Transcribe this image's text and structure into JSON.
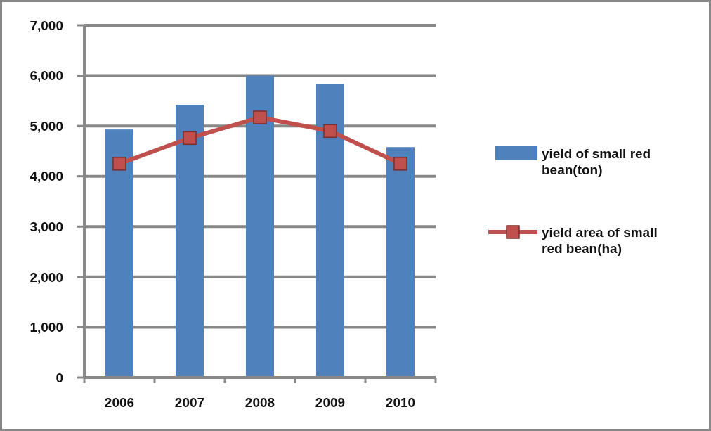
{
  "chart_data": {
    "type": "bar",
    "categories": [
      "2006",
      "2007",
      "2008",
      "2009",
      "2010"
    ],
    "series": [
      {
        "name": "yield of small red bean(ton)",
        "color": "#4f81bd",
        "values": [
          4930,
          5420,
          6000,
          5830,
          4580
        ]
      },
      {
        "name": "yield area of small red bean(ha)",
        "type": "line",
        "color": "#c0504d",
        "marker": "square",
        "values": [
          4250,
          4760,
          5170,
          4900,
          4250
        ]
      }
    ],
    "ylim": [
      0,
      7000
    ],
    "yticks": [
      {
        "value": 0,
        "label": "0"
      },
      {
        "value": 1000,
        "label": "1,000"
      },
      {
        "value": 2000,
        "label": "2,000"
      },
      {
        "value": 3000,
        "label": "3,000"
      },
      {
        "value": 4000,
        "label": "4,000"
      },
      {
        "value": 5000,
        "label": "5,000"
      },
      {
        "value": 6000,
        "label": "6,000"
      },
      {
        "value": 7000,
        "label": "7,000"
      }
    ],
    "grid": "y",
    "legend": "right"
  }
}
